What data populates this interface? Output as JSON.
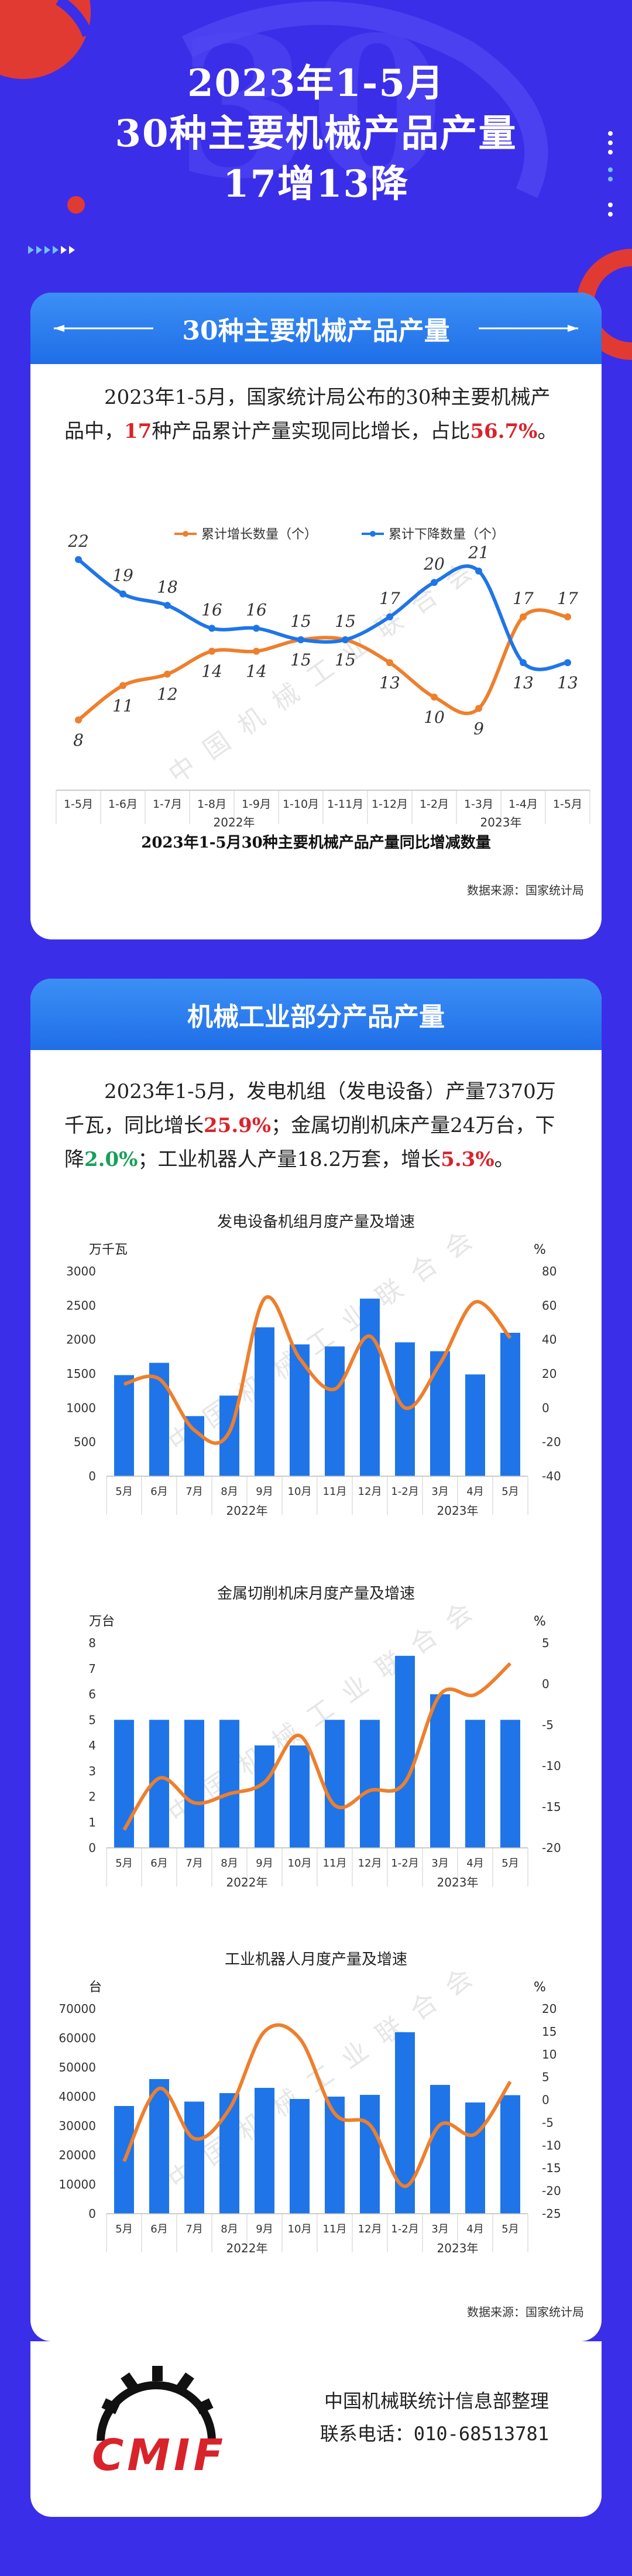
{
  "header": {
    "title_line1": "2023年1-5月",
    "title_line2": "30种主要机械产品产量",
    "title_line3": "17增13降"
  },
  "section1": {
    "heading": "30种主要机械产品产量",
    "para_a": "2023年1-5月，国家统计局公布的30种主要机械产品中，",
    "para_b": "17",
    "para_c": "种产品累计产量实现同比增长，占比",
    "para_d": "56.7%",
    "para_e": "。",
    "source": "数据来源：国家统计局",
    "watermark": "中国机械工业联合会"
  },
  "section2": {
    "heading": "机械工业部分产品产量",
    "p1": "2023年1-5月，发电机组（发电设备）产量7370万千瓦，同比增长",
    "p1_red": "25.9%",
    "p2": "；金属切削机床产量24万台，下降",
    "p2_green": "2.0%",
    "p3": "；工业机器人产量18.2万套，增长",
    "p3_red": "5.3%",
    "p4": "。",
    "source": "数据来源：国家统计局",
    "watermark": "中国机械工业联合会"
  },
  "footer": {
    "logo_text": "CMIF",
    "org": "中国机械联统计信息部整理",
    "phone": "联系电话：010-68513781"
  },
  "colors": {
    "blue": "#1f75e8",
    "orange": "#ee7f2d",
    "background": "#3b2ee8"
  },
  "chart_data": [
    {
      "type": "line",
      "title": "2023年1-5月30种主要机械产品产量同比增减数量",
      "categories": [
        "1-5月",
        "1-6月",
        "1-7月",
        "1-8月",
        "1-9月",
        "1-10月",
        "1-11月",
        "1-12月",
        "1-2月",
        "1-3月",
        "1-4月",
        "1-5月"
      ],
      "year_groups": [
        {
          "label": "2022年",
          "from": 0,
          "to": 7
        },
        {
          "label": "2023年",
          "from": 8,
          "to": 11
        }
      ],
      "series": [
        {
          "name": "累计增长数量（个）",
          "color": "#ee7f2d",
          "values": [
            8,
            11,
            12,
            14,
            14,
            15,
            15,
            13,
            10,
            9,
            17,
            17
          ]
        },
        {
          "name": "累计下降数量（个）",
          "color": "#1f75e8",
          "values": [
            22,
            19,
            18,
            16,
            16,
            15,
            15,
            17,
            20,
            21,
            13,
            13
          ]
        }
      ],
      "legend": "top"
    },
    {
      "type": "bar",
      "title": "发电设备机组月度产量及增速",
      "y_unit": "万千瓦",
      "y2_unit": "%",
      "ylim": [
        0,
        3000
      ],
      "y2lim": [
        -40,
        80
      ],
      "y_ticks": [
        0,
        500,
        1000,
        1500,
        2000,
        2500,
        3000
      ],
      "y2_ticks": [
        -40,
        -20,
        0,
        20,
        40,
        60,
        80
      ],
      "categories": [
        "5月",
        "6月",
        "7月",
        "8月",
        "9月",
        "10月",
        "11月",
        "12月",
        "1-2月",
        "3月",
        "4月",
        "5月"
      ],
      "year_groups": [
        {
          "label": "2022年",
          "from": 0,
          "to": 7
        },
        {
          "label": "2023年",
          "from": 8,
          "to": 11
        }
      ],
      "bars": [
        1480,
        1660,
        880,
        1180,
        2180,
        1930,
        1900,
        2600,
        1960,
        1830,
        1490,
        2100
      ],
      "line": [
        14,
        17,
        -13,
        -14,
        64,
        29,
        11,
        42,
        0,
        26,
        62,
        41
      ]
    },
    {
      "type": "bar",
      "title": "金属切削机床月度产量及增速",
      "y_unit": "万台",
      "y2_unit": "%",
      "ylim": [
        0,
        8
      ],
      "y2lim": [
        -20,
        5
      ],
      "y_ticks": [
        0,
        1,
        2,
        3,
        4,
        5,
        6,
        7,
        8
      ],
      "y2_ticks": [
        -20,
        -15,
        -10,
        -5,
        0,
        5
      ],
      "categories": [
        "5月",
        "6月",
        "7月",
        "8月",
        "9月",
        "10月",
        "11月",
        "12月",
        "1-2月",
        "3月",
        "4月",
        "5月"
      ],
      "year_groups": [
        {
          "label": "2022年",
          "from": 0,
          "to": 7
        },
        {
          "label": "2023年",
          "from": 8,
          "to": 11
        }
      ],
      "bars": [
        5,
        5,
        5,
        5,
        4,
        4,
        5,
        5,
        7.5,
        6,
        5,
        5
      ],
      "line": [
        -17.8,
        -11.5,
        -14.5,
        -13.4,
        -12,
        -6.3,
        -14.8,
        -13,
        -12,
        -1.3,
        -1.3,
        2.5
      ]
    },
    {
      "type": "bar",
      "title": "工业机器人月度产量及增速",
      "y_unit": "台",
      "y2_unit": "%",
      "ylim": [
        0,
        70000
      ],
      "y2lim": [
        -25,
        20
      ],
      "y_ticks": [
        0,
        10000,
        20000,
        30000,
        40000,
        50000,
        60000,
        70000
      ],
      "y2_ticks": [
        -25,
        -20,
        -15,
        -10,
        -5,
        0,
        5,
        10,
        15,
        20
      ],
      "categories": [
        "5月",
        "6月",
        "7月",
        "8月",
        "9月",
        "10月",
        "11月",
        "12月",
        "1-2月",
        "3月",
        "4月",
        "5月"
      ],
      "year_groups": [
        {
          "label": "2022年",
          "from": 0,
          "to": 7
        },
        {
          "label": "2023年",
          "from": 8,
          "to": 11
        }
      ],
      "bars": [
        36800,
        46000,
        38300,
        41200,
        43000,
        39200,
        40000,
        40600,
        62000,
        44000,
        38000,
        40500
      ],
      "line": [
        -13.5,
        2.5,
        -8.5,
        -2,
        15,
        13.5,
        -3,
        -5.5,
        -19,
        -5.5,
        -7.5,
        4
      ]
    }
  ]
}
